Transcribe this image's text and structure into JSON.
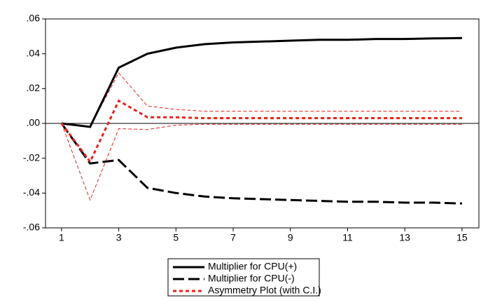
{
  "chart_data": {
    "type": "line",
    "x": [
      1,
      2,
      3,
      4,
      5,
      6,
      7,
      8,
      9,
      10,
      11,
      12,
      13,
      14,
      15
    ],
    "xlim": [
      0.44,
      15.59
    ],
    "xticks": [
      1,
      3,
      5,
      7,
      9,
      11,
      13,
      15
    ],
    "ylim": [
      -0.06,
      0.06
    ],
    "yticks": [
      {
        "value": 0.06,
        "label": ".06"
      },
      {
        "value": 0.04,
        "label": ".04"
      },
      {
        "value": 0.02,
        "label": ".02"
      },
      {
        "value": 0,
        "label": ".00"
      },
      {
        "value": -0.02,
        "label": "-.02"
      },
      {
        "value": -0.04,
        "label": "-.04"
      },
      {
        "value": -0.06,
        "label": "-.06"
      }
    ],
    "series": [
      {
        "name": "Multiplier for CPU(+)",
        "color": "#000000",
        "dash": "solid",
        "values": [
          0,
          -0.002,
          0.032,
          0.04,
          0.0435,
          0.0455,
          0.0465,
          0.047,
          0.0475,
          0.048,
          0.048,
          0.0485,
          0.0485,
          0.0488,
          0.049
        ]
      },
      {
        "name": "Multiplier for CPU(-)",
        "color": "#000000",
        "dash": "long",
        "values": [
          0,
          -0.023,
          -0.021,
          -0.037,
          -0.04,
          -0.042,
          -0.043,
          -0.0435,
          -0.044,
          -0.0445,
          -0.045,
          -0.045,
          -0.0455,
          -0.0455,
          -0.046
        ]
      },
      {
        "name": "Asymmetry Plot (with C.I.)",
        "color": "#e8231b",
        "dash": "short",
        "values": [
          0,
          -0.022,
          0.013,
          0.0035,
          0.0035,
          0.003,
          0.003,
          0.003,
          0.003,
          0.003,
          0.003,
          0.003,
          0.003,
          0.003,
          0.003
        ]
      }
    ],
    "bands": [
      {
        "color": "#e8231b",
        "values": [
          0,
          -0.002,
          0.029,
          0.01,
          0.008,
          0.007,
          0.007,
          0.007,
          0.007,
          0.007,
          0.007,
          0.007,
          0.007,
          0.007,
          0.007
        ]
      },
      {
        "color": "#e8231b",
        "values": [
          0,
          -0.044,
          -0.003,
          -0.0035,
          -0.001,
          -0.0005,
          -0.0005,
          -0.0005,
          -0.0005,
          -0.0005,
          -0.0005,
          -0.0005,
          -0.0005,
          -0.0005,
          -0.0005
        ]
      }
    ]
  }
}
